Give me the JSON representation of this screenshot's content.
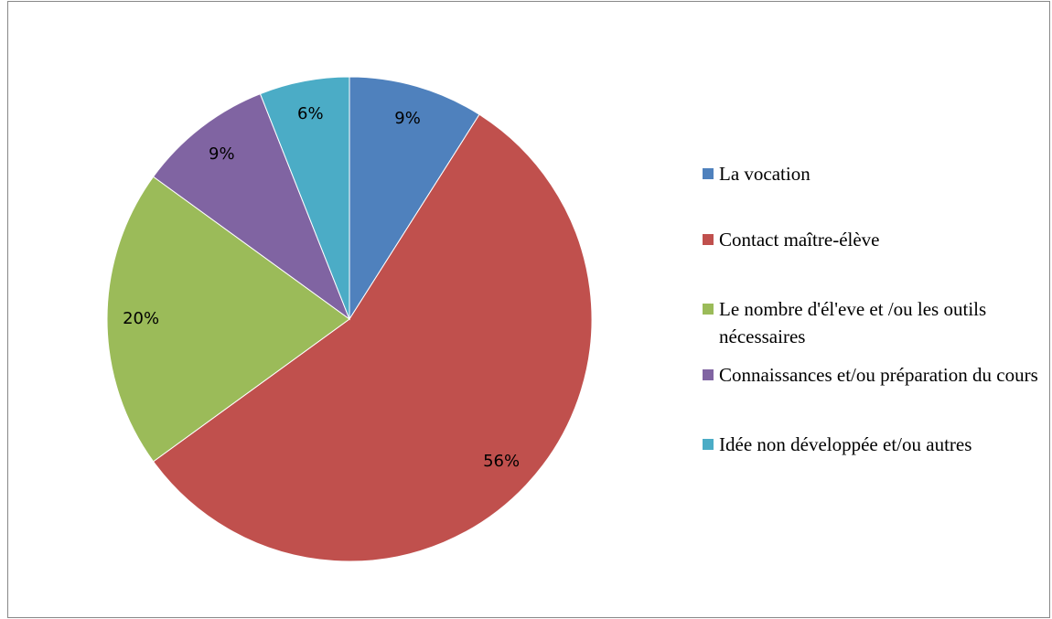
{
  "chart_data": {
    "type": "pie",
    "categories": [
      "La vocation",
      "Contact maître-élève",
      "Le nombre d'él'eve et /ou les outils nécessaires",
      "Connaissances et/ou préparation du cours",
      "Idée non développée et/ou autres"
    ],
    "values": [
      9,
      56,
      20,
      9,
      6
    ],
    "value_labels": [
      "9%",
      "56%",
      "20%",
      "9%",
      "6%"
    ],
    "colors": [
      "#4f81bd",
      "#c0504d",
      "#9bbb59",
      "#8064a2",
      "#4bacc6"
    ],
    "legend": "right"
  }
}
